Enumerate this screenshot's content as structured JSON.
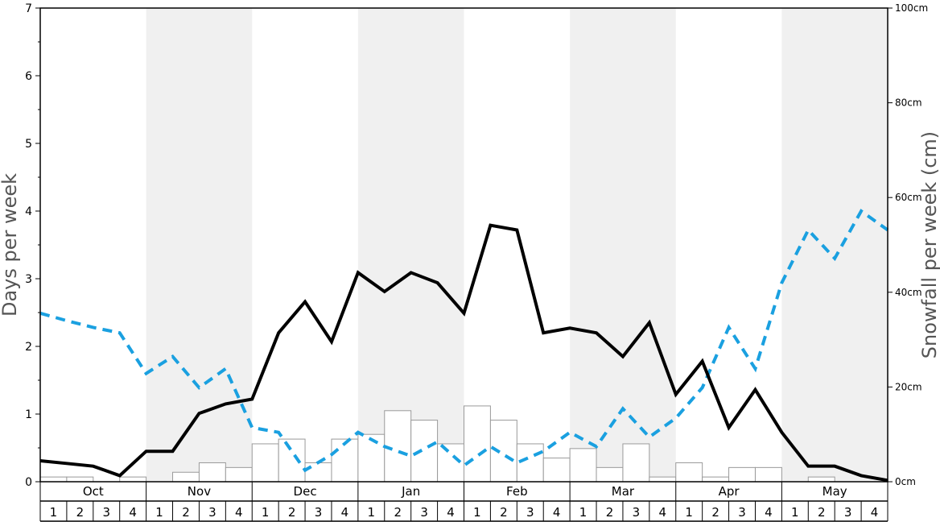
{
  "chart_data": {
    "type": "bar+line",
    "title": "",
    "ylabel_left": "Days per week",
    "ylabel_right": "Snowfall per week (cm)",
    "ylim_left": [
      0,
      7
    ],
    "ylim_right": [
      0,
      100
    ],
    "left_ticks": [
      "0",
      "1",
      "2",
      "3",
      "4",
      "5",
      "6",
      "7"
    ],
    "right_ticks": [
      "0cm",
      "20cm",
      "40cm",
      "60cm",
      "80cm",
      "100cm"
    ],
    "months": [
      "Oct",
      "Nov",
      "Dec",
      "Jan",
      "Feb",
      "Mar",
      "Apr",
      "May"
    ],
    "week_labels": [
      "1",
      "2",
      "3",
      "4"
    ],
    "shaded_months": [
      "Nov",
      "Jan",
      "Mar",
      "May"
    ],
    "grid": false,
    "colors": {
      "bars_fill": "#ffffff",
      "bars_stroke": "#9a9a9a",
      "solid_line": "#000000",
      "dashed_line": "#1aa0e0",
      "shading": "#f0f0f0"
    },
    "series": [
      {
        "kind": "bar",
        "axis": "right",
        "values": [
          1,
          1,
          0,
          1,
          0,
          2,
          4,
          3,
          8,
          9,
          4,
          9,
          10,
          15,
          13,
          8,
          16,
          13,
          8,
          5,
          7,
          3,
          8,
          1,
          4,
          1,
          3,
          3,
          0,
          1,
          0,
          0
        ]
      },
      {
        "kind": "line",
        "style": "solid",
        "axis": "left",
        "values": [
          0.31,
          0.27,
          0.23,
          0.09,
          0.45,
          0.45,
          1.01,
          1.15,
          1.22,
          2.2,
          2.66,
          2.07,
          3.09,
          2.81,
          3.09,
          2.94,
          2.49,
          3.79,
          3.72,
          2.2,
          2.27,
          2.2,
          1.85,
          2.35,
          1.29,
          1.78,
          0.8,
          1.36,
          0.73,
          0.23,
          0.23,
          0.09,
          0.02
        ]
      },
      {
        "kind": "line",
        "style": "dashed",
        "axis": "left",
        "values": [
          2.49,
          2.38,
          2.28,
          2.2,
          1.6,
          1.85,
          1.39,
          1.67,
          0.8,
          0.73,
          0.17,
          0.4,
          0.73,
          0.52,
          0.38,
          0.59,
          0.24,
          0.52,
          0.28,
          0.45,
          0.73,
          0.52,
          1.08,
          0.66,
          0.94,
          1.39,
          2.28,
          1.67,
          2.94,
          3.72,
          3.3,
          4.0,
          3.72
        ]
      }
    ]
  }
}
